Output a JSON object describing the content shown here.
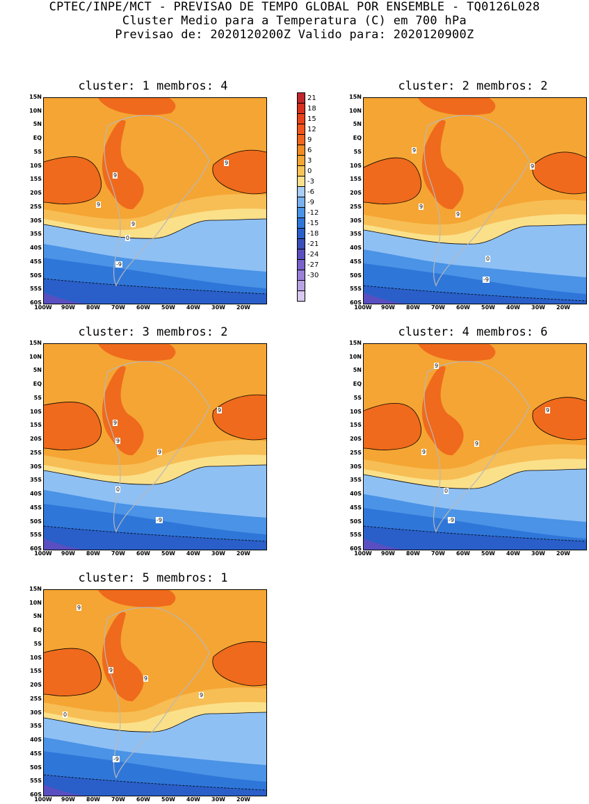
{
  "header": {
    "line1": "CPTEC/INPE/MCT - PREVISAO DE TEMPO GLOBAL POR ENSEMBLE - TQ0126L028",
    "line2": "Cluster Medio para a Temperatura (C) em 700 hPa",
    "line3": "Previsao de: 2020120200Z   Valido para: 2020120900Z"
  },
  "panels": [
    {
      "title": "cluster: 1   membros: 4"
    },
    {
      "title": "cluster: 2   membros: 2"
    },
    {
      "title": "cluster: 3   membros: 2"
    },
    {
      "title": "cluster: 4   membros: 6"
    },
    {
      "title": "cluster: 5   membros: 1"
    }
  ],
  "lat_labels": [
    "15N",
    "10N",
    "5N",
    "EQ",
    "5S",
    "10S",
    "15S",
    "20S",
    "25S",
    "30S",
    "35S",
    "40S",
    "45S",
    "50S",
    "55S",
    "60S"
  ],
  "lon_labels": [
    "100W",
    "90W",
    "80W",
    "70W",
    "60W",
    "50W",
    "40W",
    "30W",
    "20W"
  ],
  "contour_labels": {
    "warm": "9",
    "zero": "0",
    "cold": "-9"
  },
  "colorbar": {
    "labels": [
      "21",
      "18",
      "15",
      "12",
      "9",
      "6",
      "3",
      "0",
      "-3",
      "-6",
      "-9",
      "-12",
      "-15",
      "-18",
      "-21",
      "-24",
      "-27",
      "-30"
    ],
    "colors": [
      "#c0272d",
      "#d7301f",
      "#e8431b",
      "#f2561a",
      "#f0661e",
      "#f28b22",
      "#f5a533",
      "#f8c457",
      "#fbe08a",
      "#a9cdf5",
      "#79b1ee",
      "#4a93e6",
      "#2f76d9",
      "#2a5fc9",
      "#3a4fb8",
      "#5a4fc0",
      "#7a62cc",
      "#9a80d8",
      "#b9a3e3",
      "#d8c9ef"
    ]
  },
  "colors": {
    "orange": "#f5a533",
    "dark_orange": "#ef6a1c",
    "red": "#e0441a",
    "light_orange": "#f7be55",
    "yellow": "#fbe08a",
    "light_blue": "#8fc0f4",
    "blue": "#4a93e6",
    "mid_blue": "#2f76d9",
    "dark_blue": "#2a5fc9",
    "purple": "#5a4fc0"
  }
}
